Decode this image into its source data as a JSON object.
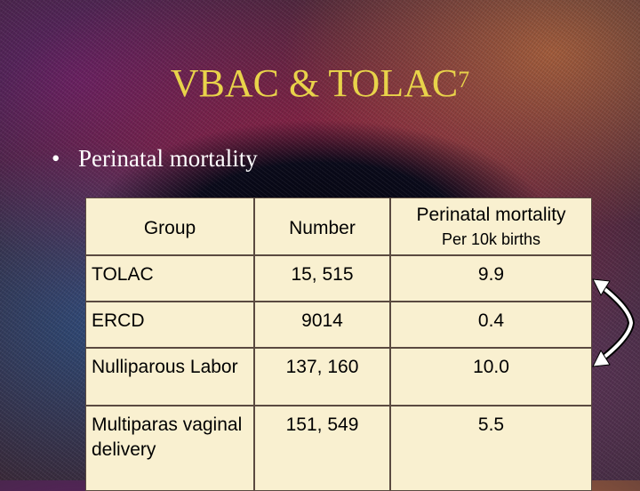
{
  "slide": {
    "title": "VBAC & TOLAC",
    "title_superscript": "7",
    "bullet": "Perinatal mortality"
  },
  "table": {
    "headers": {
      "group": "Group",
      "number": "Number",
      "mortality": "Perinatal mortality",
      "mortality_sub": "Per 10k births"
    },
    "rows": [
      {
        "group": "TOLAC",
        "number": "15, 515",
        "mortality": "9.9"
      },
      {
        "group": "ERCD",
        "number": "9014",
        "mortality": "0.4"
      },
      {
        "group": "Nulliparous Labor",
        "number": "137, 160",
        "mortality": "10.0"
      },
      {
        "group": "Multiparas vaginal delivery",
        "number": "151, 549",
        "mortality": "5.5"
      }
    ]
  },
  "colors": {
    "title": "#e8d34a",
    "cell_background": "#f9f0d0",
    "arrow": "#ffffff"
  },
  "icons": {
    "arrow": "double-headed-curved-arrow"
  }
}
